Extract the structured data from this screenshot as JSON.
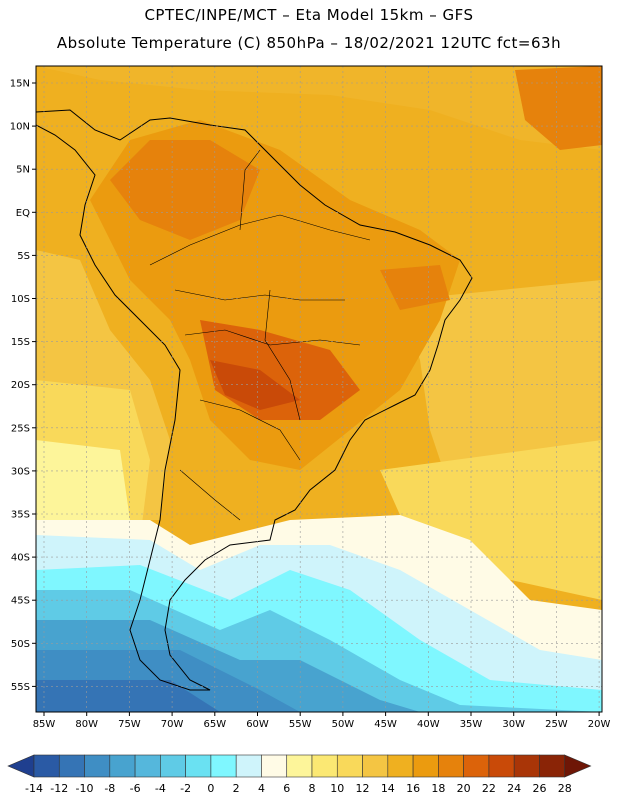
{
  "header": {
    "line1": "CPTEC/INPE/MCT –  Eta Model 15km – GFS",
    "line2": "Absolute Temperature (C) 850hPa – 18/02/2021 12UTC fct=63h"
  },
  "lat_labels": [
    "15N",
    "10N",
    "5N",
    "EQ",
    "5S",
    "10S",
    "15S",
    "20S",
    "25S",
    "30S",
    "35S",
    "40S",
    "45S",
    "50S",
    "55S"
  ],
  "lon_labels": [
    "85W",
    "80W",
    "75W",
    "70W",
    "65W",
    "60W",
    "55W",
    "50W",
    "45W",
    "40W",
    "35W",
    "30W",
    "25W",
    "20W"
  ],
  "colorbar": {
    "labels": [
      "-14",
      "-12",
      "-10",
      "-8",
      "-6",
      "-4",
      "-2",
      "0",
      "2",
      "4",
      "6",
      "8",
      "10",
      "12",
      "14",
      "16",
      "18",
      "20",
      "22",
      "24",
      "26",
      "28"
    ],
    "colors": [
      "#1f3f8f",
      "#2a5aa5",
      "#3574b5",
      "#3f8ec4",
      "#48a3cf",
      "#55b7dc",
      "#5fcbe6",
      "#6ae1f2",
      "#7ff7ff",
      "#cff4fb",
      "#fffbe6",
      "#fdf59a",
      "#fbe873",
      "#f9d95a",
      "#f4c543",
      "#efb020",
      "#eb9b0f",
      "#e6820c",
      "#dc630a",
      "#c94a08",
      "#a93507",
      "#8a2406",
      "#6e1606"
    ],
    "colors_note": ""
  }
}
